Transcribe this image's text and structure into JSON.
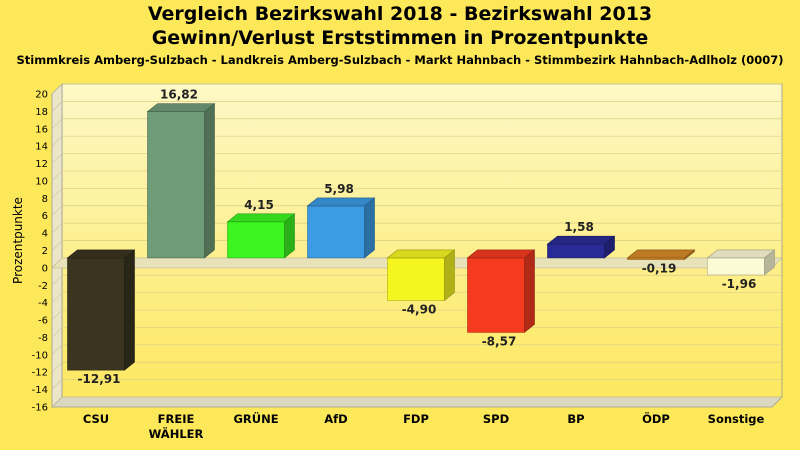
{
  "chart_data": {
    "type": "bar",
    "title": "Vergleich Bezirkswahl 2018 - Bezirkswahl 2013",
    "subtitle": "Gewinn/Verlust Erststimmen in Prozentpunkte",
    "subtitle2": "Stimmkreis Amberg-Sulzbach - Landkreis Amberg-Sulzbach - Markt Hahnbach - Stimmbezirk Hahnbach-Adlholz (0007)",
    "ylabel": "Prozentpunkte",
    "xlabel": "",
    "ylim": [
      -16,
      20
    ],
    "yticks": [
      20,
      18,
      16,
      14,
      12,
      10,
      8,
      6,
      4,
      2,
      0,
      -2,
      -4,
      -6,
      -8,
      -10,
      -12,
      -14,
      -16
    ],
    "grid": true,
    "categories": [
      "CSU",
      "FREIE WÄHLER",
      "GRÜNE",
      "AfD",
      "FDP",
      "SPD",
      "BP",
      "ÖDP",
      "Sonstige"
    ],
    "values": [
      -12.91,
      16.82,
      4.15,
      5.98,
      -4.9,
      -8.57,
      1.58,
      -0.19,
      -1.96
    ],
    "value_labels": [
      "-12,91",
      "16,82",
      "4,15",
      "5,98",
      "-4,90",
      "-8,57",
      "1,58",
      "-0,19",
      "-1,96"
    ],
    "colors": [
      "#3b3520",
      "#6f9c78",
      "#3cf520",
      "#3c9be2",
      "#f5f520",
      "#f53a20",
      "#2a2a96",
      "#d88a28",
      "#fdfbd6"
    ]
  }
}
